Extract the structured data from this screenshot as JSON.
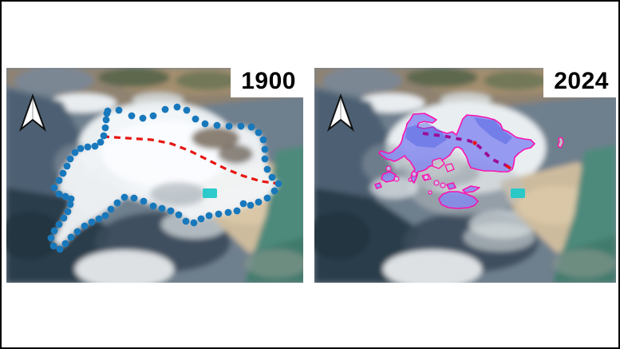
{
  "figure": {
    "title": "glacier extent comparison, two aerial map panels",
    "background": "#ffffff",
    "border_color": "#000000"
  },
  "compass": {
    "fill": "#ffffff",
    "stroke": "#111111"
  },
  "panels": [
    {
      "name": "panel-1900",
      "year_label": "1900",
      "annotations": {
        "extent_outline_dots": {
          "color": "#1878bc",
          "radius": 4.4,
          "points": [
            [
              127,
              54
            ],
            [
              141,
              53
            ],
            [
              157,
              60
            ],
            [
              171,
              63
            ],
            [
              184,
              60
            ],
            [
              199,
              52
            ],
            [
              214,
              49
            ],
            [
              226,
              53
            ],
            [
              237,
              64
            ],
            [
              249,
              70
            ],
            [
              264,
              72
            ],
            [
              279,
              73
            ],
            [
              294,
              73
            ],
            [
              307,
              74
            ],
            [
              316,
              81
            ],
            [
              322,
              90
            ],
            [
              324,
              102
            ],
            [
              324,
              114
            ],
            [
              327,
              127
            ],
            [
              333,
              137
            ],
            [
              341,
              145
            ],
            [
              336,
              154
            ],
            [
              327,
              163
            ],
            [
              316,
              168
            ],
            [
              306,
              172
            ],
            [
              297,
              170
            ],
            [
              289,
              179
            ],
            [
              278,
              181
            ],
            [
              266,
              183
            ],
            [
              254,
              185
            ],
            [
              244,
              189
            ],
            [
              235,
              194
            ],
            [
              225,
              192
            ],
            [
              216,
              184
            ],
            [
              206,
              179
            ],
            [
              195,
              176
            ],
            [
              184,
              173
            ],
            [
              172,
              167
            ],
            [
              160,
              163
            ],
            [
              148,
              162
            ],
            [
              139,
              169
            ],
            [
              131,
              177
            ],
            [
              124,
              185
            ],
            [
              116,
              189
            ],
            [
              107,
              193
            ],
            [
              98,
              198
            ],
            [
              89,
              205
            ],
            [
              81,
              212
            ],
            [
              74,
              220
            ],
            [
              67,
              227
            ],
            [
              59,
              223
            ],
            [
              56,
              213
            ],
            [
              60,
              204
            ],
            [
              66,
              196
            ],
            [
              72,
              188
            ],
            [
              77,
              180
            ],
            [
              80,
              171
            ],
            [
              81,
              164
            ],
            [
              74,
              161
            ],
            [
              66,
              158
            ],
            [
              60,
              150
            ],
            [
              66,
              141
            ],
            [
              71,
              132
            ],
            [
              76,
              123
            ],
            [
              80,
              114
            ],
            [
              86,
              106
            ],
            [
              93,
              101
            ],
            [
              102,
              99
            ],
            [
              111,
              98
            ],
            [
              118,
              93
            ],
            [
              122,
              85
            ],
            [
              124,
              75
            ],
            [
              125,
              65
            ],
            [
              126,
              57
            ]
          ]
        },
        "flowline": {
          "color": "#e81410",
          "width": 3.2,
          "dash": "8 6",
          "points": [
            [
              121,
              86
            ],
            [
              152,
              88
            ],
            [
              182,
              90
            ],
            [
              207,
              95
            ],
            [
              230,
              104
            ],
            [
              252,
              115
            ],
            [
              274,
              126
            ],
            [
              296,
              135
            ],
            [
              319,
              142
            ],
            [
              341,
              145
            ]
          ]
        }
      }
    },
    {
      "name": "panel-2024",
      "year_label": "2024",
      "annotations": {
        "glacier_fill": {
          "fill": "#8488f0",
          "fill_opacity": 0.82,
          "stroke": "#fb12b0",
          "stroke_width": 1.6,
          "ice_shade_color": "#4c5ee0",
          "main_polygon": [
            [
              124,
              58
            ],
            [
              138,
              57
            ],
            [
              146,
              61
            ],
            [
              153,
              65
            ],
            [
              148,
              69
            ],
            [
              138,
              67
            ],
            [
              131,
              69
            ],
            [
              129,
              74
            ],
            [
              137,
              76
            ],
            [
              149,
              74
            ],
            [
              153,
              78
            ],
            [
              160,
              80
            ],
            [
              166,
              82
            ],
            [
              173,
              80
            ],
            [
              178,
              84
            ],
            [
              186,
              64
            ],
            [
              191,
              59
            ],
            [
              203,
              60
            ],
            [
              215,
              62
            ],
            [
              226,
              65
            ],
            [
              233,
              70
            ],
            [
              236,
              77
            ],
            [
              243,
              80
            ],
            [
              253,
              87
            ],
            [
              263,
              89
            ],
            [
              271,
              90
            ],
            [
              276,
              95
            ],
            [
              271,
              100
            ],
            [
              263,
              102
            ],
            [
              256,
              107
            ],
            [
              251,
              112
            ],
            [
              250,
              120
            ],
            [
              248,
              127
            ],
            [
              243,
              130
            ],
            [
              233,
              130
            ],
            [
              223,
              129
            ],
            [
              213,
              129
            ],
            [
              203,
              127
            ],
            [
              196,
              125
            ],
            [
              193,
              119
            ],
            [
              191,
              112
            ],
            [
              188,
              107
            ],
            [
              185,
              102
            ],
            [
              180,
              99
            ],
            [
              176,
              100
            ],
            [
              173,
              104
            ],
            [
              170,
              109
            ],
            [
              166,
              112
            ],
            [
              163,
              114
            ],
            [
              158,
              117
            ],
            [
              153,
              120
            ],
            [
              148,
              122
            ],
            [
              143,
              124
            ],
            [
              140,
              127
            ],
            [
              135,
              129
            ],
            [
              130,
              130
            ],
            [
              128,
              137
            ],
            [
              125,
              144
            ],
            [
              121,
              140
            ],
            [
              122,
              132
            ],
            [
              126,
              127
            ],
            [
              123,
              122
            ],
            [
              120,
              117
            ],
            [
              116,
              114
            ],
            [
              113,
              110
            ],
            [
              110,
              112
            ],
            [
              105,
              115
            ],
            [
              100,
              117
            ],
            [
              95,
              115
            ],
            [
              90,
              114
            ],
            [
              85,
              110
            ],
            [
              81,
              107
            ],
            [
              83,
              104
            ],
            [
              93,
              107
            ],
            [
              98,
              105
            ],
            [
              101,
              102
            ],
            [
              105,
              99
            ],
            [
              108,
              95
            ],
            [
              110,
              90
            ],
            [
              111,
              85
            ],
            [
              113,
              80
            ],
            [
              115,
              75
            ],
            [
              116,
              70
            ],
            [
              120,
              65
            ]
          ],
          "ice_shade_patches": [
            [
              [
                116,
                75
              ],
              [
                140,
                68
              ],
              [
                158,
                78
              ],
              [
                166,
                90
              ],
              [
                150,
                100
              ],
              [
                128,
                98
              ],
              [
                114,
                88
              ]
            ],
            [
              [
                200,
                62
              ],
              [
                226,
                66
              ],
              [
                236,
                78
              ],
              [
                248,
                87
              ],
              [
                240,
                96
              ],
              [
                222,
                86
              ],
              [
                206,
                72
              ]
            ]
          ],
          "minor_polygons": [
            [
              [
                156,
                164
              ],
              [
                161,
                158
              ],
              [
                169,
                155
              ],
              [
                180,
                155
              ],
              [
                191,
                158
              ],
              [
                200,
                162
              ],
              [
                205,
                167
              ],
              [
                201,
                172
              ],
              [
                193,
                175
              ],
              [
                180,
                176
              ],
              [
                168,
                175
              ],
              [
                159,
                171
              ]
            ],
            [
              [
                186,
                153
              ],
              [
                196,
                148
              ],
              [
                207,
                150
              ],
              [
                199,
                155
              ],
              [
                189,
                156
              ]
            ],
            [
              [
                166,
                146
              ],
              [
                174,
                144
              ],
              [
                177,
                150
              ],
              [
                169,
                152
              ]
            ],
            [
              [
                86,
                133
              ],
              [
                95,
                130
              ],
              [
                102,
                134
              ],
              [
                99,
                141
              ],
              [
                90,
                143
              ],
              [
                84,
                139
              ]
            ],
            [
              [
                76,
                146
              ],
              [
                82,
                144
              ],
              [
                84,
                149
              ],
              [
                78,
                151
              ]
            ]
          ],
          "outlined_gaps": [
            [
              [
                148,
                116
              ],
              [
                158,
                113
              ],
              [
                163,
                120
              ],
              [
                156,
                126
              ],
              [
                148,
                123
              ]
            ],
            [
              [
                164,
                122
              ],
              [
                172,
                120
              ],
              [
                175,
                127
              ],
              [
                167,
                130
              ]
            ],
            [
              [
                135,
                135
              ],
              [
                143,
                133
              ],
              [
                146,
                139
              ],
              [
                138,
                141
              ]
            ],
            [
              [
                306,
                88
              ],
              [
                310,
                87
              ],
              [
                312,
                93
              ],
              [
                309,
                100
              ],
              [
                305,
                98
              ],
              [
                307,
                92
              ]
            ]
          ],
          "dot_fragments": [
            [
              93,
              126,
              3
            ],
            [
              103,
              139,
              3
            ],
            [
              125,
              133,
              3
            ],
            [
              140,
              137,
              3
            ],
            [
              153,
              144,
              3
            ],
            [
              161,
              147,
              3
            ],
            [
              145,
              156,
              2
            ],
            [
              120,
              140,
              2
            ]
          ]
        },
        "flowline": {
          "color": "#9c0a96",
          "width": 3.8,
          "dash": "7 7",
          "points": [
            [
              136,
              82
            ],
            [
              151,
              84
            ],
            [
              166,
              86
            ],
            [
              181,
              89
            ],
            [
              193,
              91
            ],
            [
              201,
              94
            ],
            [
              207,
              99
            ],
            [
              215,
              107
            ],
            [
              222,
              114
            ],
            [
              230,
              118
            ],
            [
              238,
              121
            ],
            [
              245,
              125
            ]
          ],
          "red_color": "#ee1111",
          "red_marker": [
            201,
            94
          ],
          "red_dash": [
            [
              240,
              122
            ],
            [
              246,
              126
            ]
          ]
        }
      }
    }
  ]
}
